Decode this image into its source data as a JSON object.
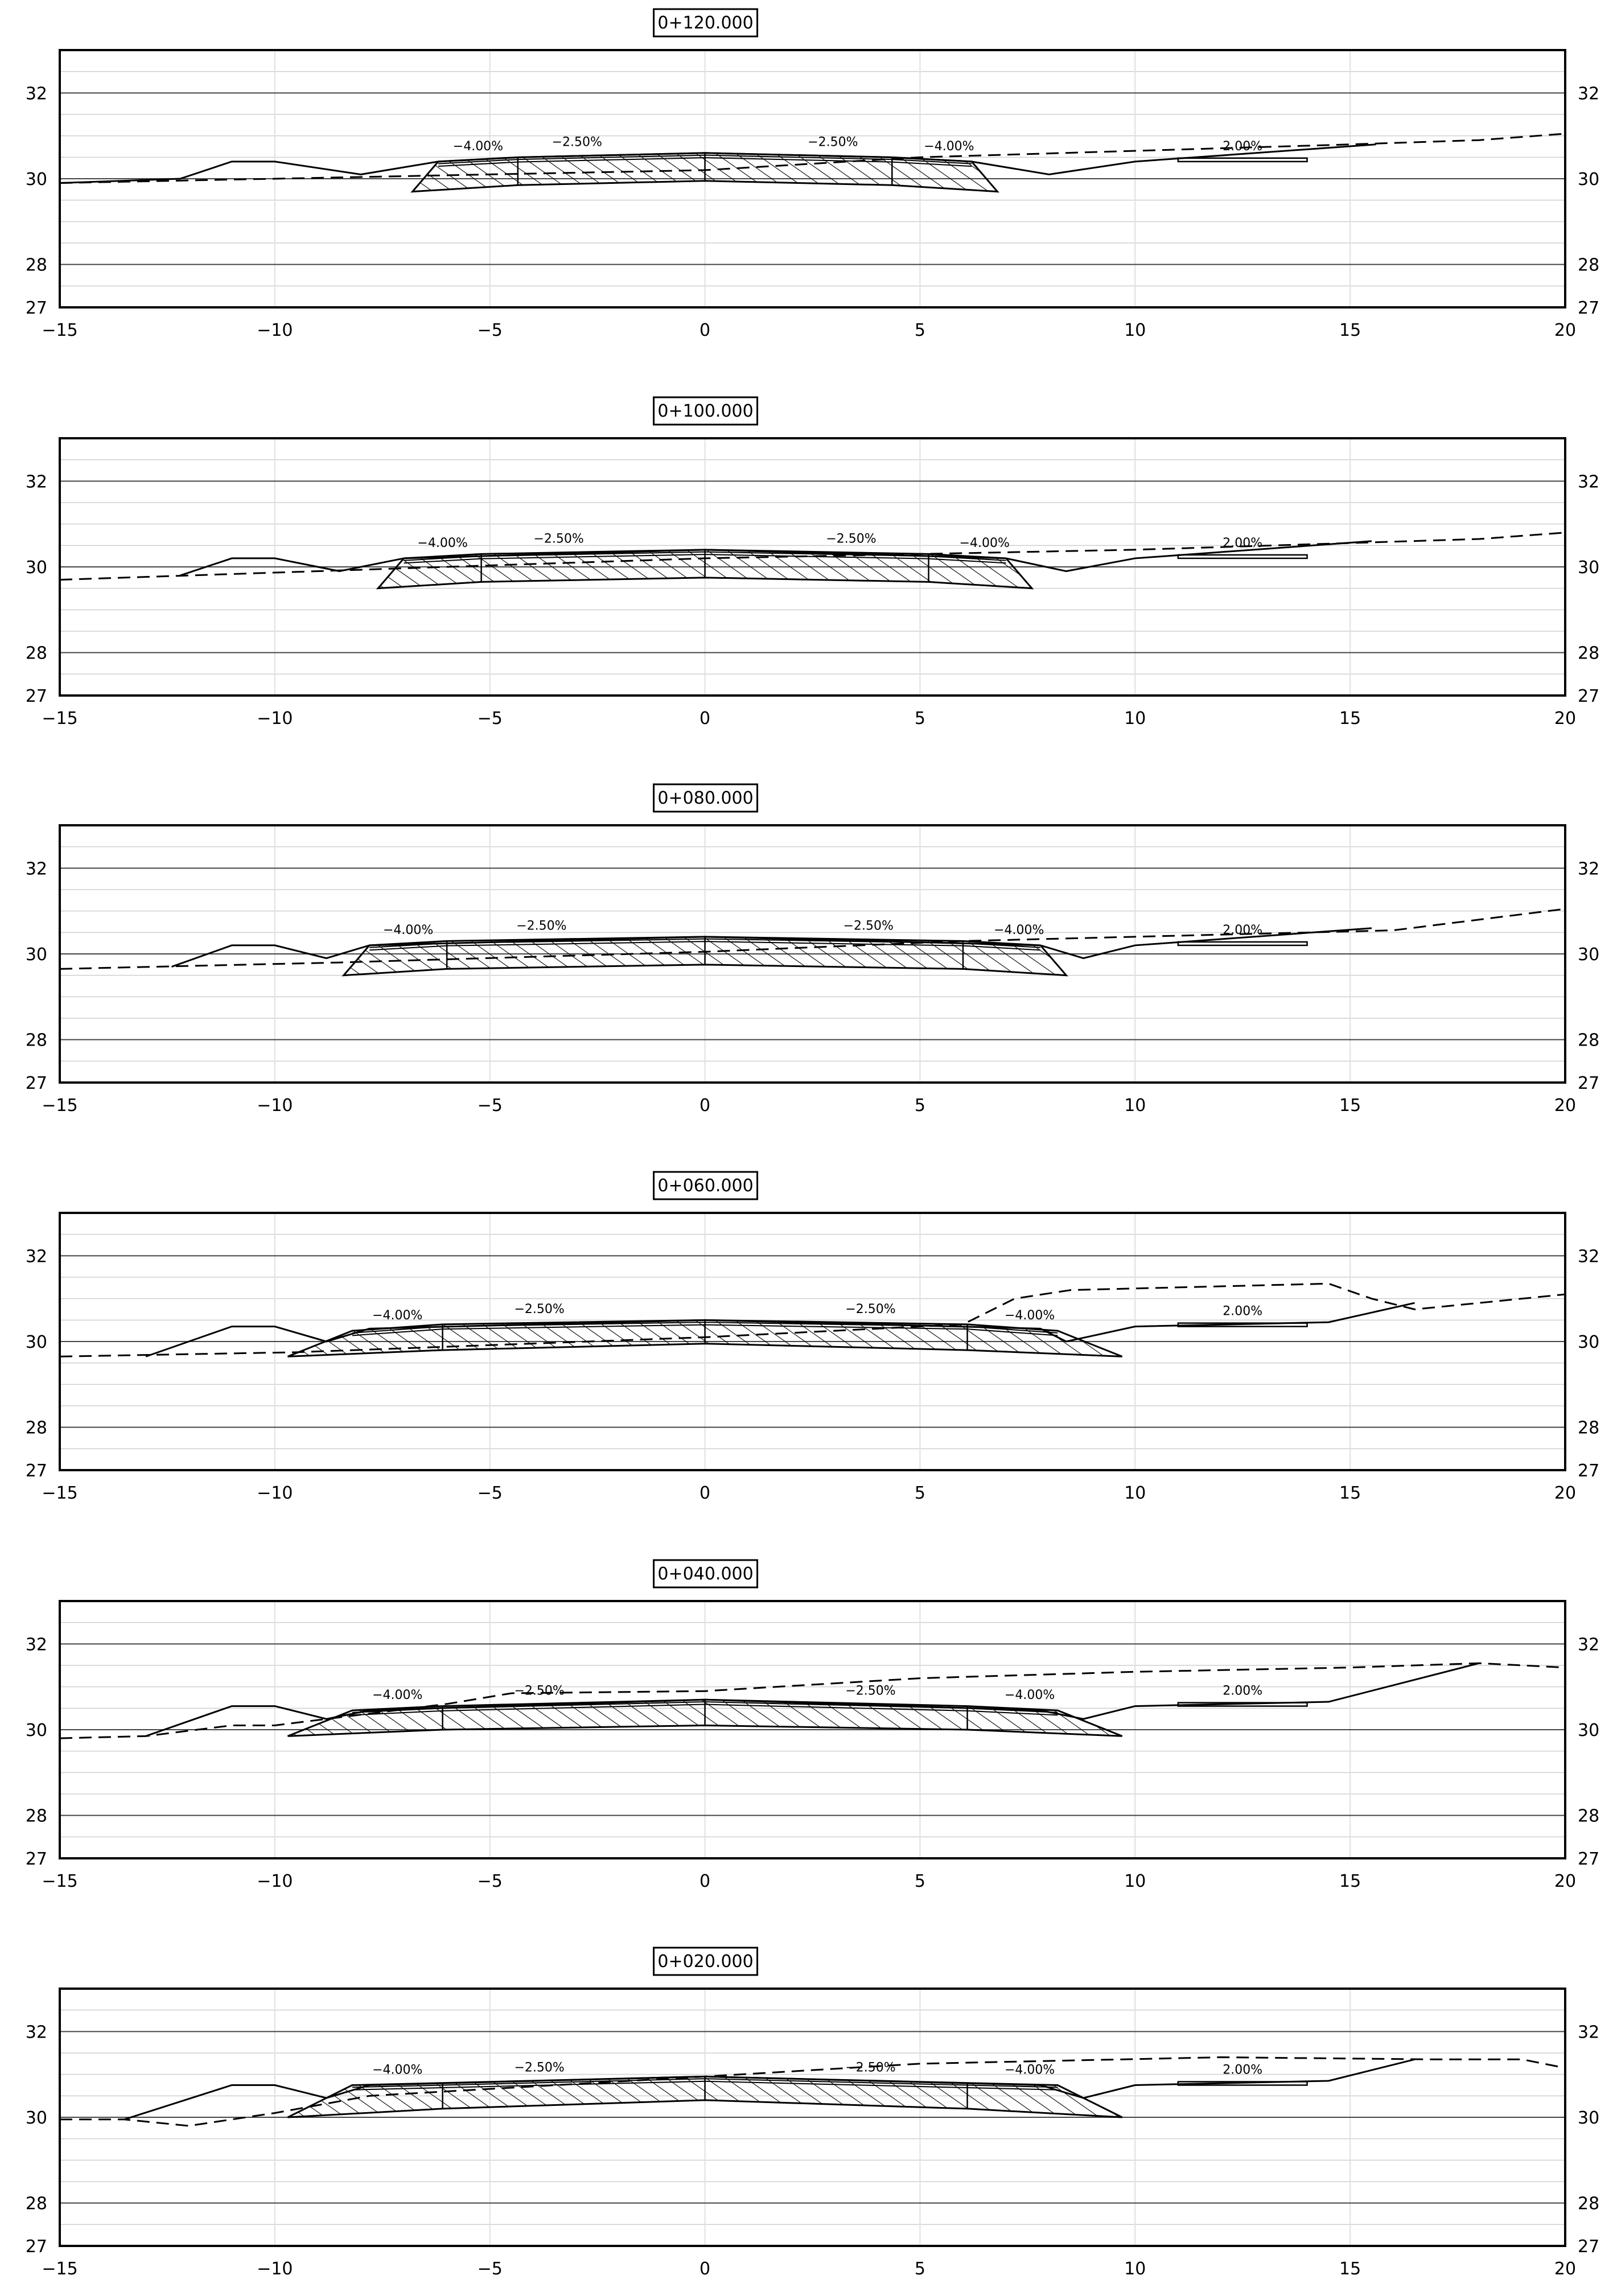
{
  "x_ticks": [
    "−15",
    "−10",
    "−5",
    "0",
    "5",
    "10",
    "15",
    "20"
  ],
  "y_ticks": [
    "32",
    "30",
    "28",
    "27"
  ],
  "grade_labels": {
    "outer": "−4.00%",
    "inner": "−2.50%",
    "right": "2.00%"
  },
  "chart_data": [
    {
      "type": "line",
      "title": "0+120.000",
      "xlim": [
        -15,
        20
      ],
      "ylim": [
        27,
        33
      ],
      "grid": true,
      "series": [
        {
          "style": "solid",
          "points": [
            [
              -15,
              29.9
            ],
            [
              -12.2,
              30.0
            ],
            [
              -11.0,
              30.4
            ],
            [
              -10.0,
              30.4
            ],
            [
              -8.0,
              30.1
            ],
            [
              -6.2,
              30.4
            ],
            [
              -4.3,
              30.5
            ],
            [
              0,
              30.6
            ],
            [
              4.3,
              30.5
            ],
            [
              6.2,
              30.4
            ],
            [
              8.0,
              30.1
            ],
            [
              10.0,
              30.4
            ],
            [
              15.6,
              30.8
            ]
          ]
        },
        {
          "style": "dashed",
          "points": [
            [
              -15,
              29.9
            ],
            [
              0,
              30.2
            ],
            [
              5.0,
              30.5
            ],
            [
              15.0,
              30.8
            ],
            [
              18.0,
              30.9
            ],
            [
              20.0,
              31.05
            ]
          ]
        }
      ],
      "section": {
        "top_center": 30.6,
        "top_inner": 30.5,
        "top_edge": 30.4,
        "bottom_center": 29.95,
        "bottom_inner": 29.85,
        "bottom_edge": 29.7,
        "inner_x": 4.35,
        "edge_x": 6.2,
        "bottom_x": 6.8
      },
      "curb": [
        11.0,
        14.0,
        30.4
      ]
    },
    {
      "type": "line",
      "title": "0+100.000",
      "xlim": [
        -15,
        20
      ],
      "ylim": [
        27,
        33
      ],
      "grid": true,
      "series": [
        {
          "style": "solid",
          "points": [
            [
              -12.2,
              29.8
            ],
            [
              -11.0,
              30.2
            ],
            [
              -10.0,
              30.2
            ],
            [
              -8.5,
              29.9
            ],
            [
              -7.0,
              30.2
            ],
            [
              0,
              30.4
            ],
            [
              7.0,
              30.2
            ],
            [
              8.4,
              29.9
            ],
            [
              10.0,
              30.2
            ],
            [
              15.5,
              30.6
            ]
          ]
        },
        {
          "style": "dashed",
          "points": [
            [
              -15,
              29.7
            ],
            [
              -7.5,
              29.95
            ],
            [
              0,
              30.2
            ],
            [
              10.0,
              30.4
            ],
            [
              18.0,
              30.65
            ],
            [
              20.0,
              30.8
            ]
          ]
        }
      ],
      "section": {
        "top_center": 30.4,
        "top_inner": 30.3,
        "top_edge": 30.2,
        "bottom_center": 29.75,
        "bottom_inner": 29.65,
        "bottom_edge": 29.5,
        "inner_x": 5.2,
        "edge_x": 7.0,
        "bottom_x": 7.6
      },
      "curb": [
        11.0,
        14.0,
        30.2
      ]
    },
    {
      "type": "line",
      "title": "0+080.000",
      "xlim": [
        -15,
        20
      ],
      "ylim": [
        27,
        33
      ],
      "grid": true,
      "series": [
        {
          "style": "solid",
          "points": [
            [
              -12.4,
              29.7
            ],
            [
              -11.0,
              30.2
            ],
            [
              -10.0,
              30.2
            ],
            [
              -8.8,
              29.9
            ],
            [
              -7.8,
              30.2
            ],
            [
              0,
              30.4
            ],
            [
              7.8,
              30.2
            ],
            [
              8.8,
              29.9
            ],
            [
              10.0,
              30.2
            ],
            [
              15.5,
              30.6
            ]
          ]
        },
        {
          "style": "dashed",
          "points": [
            [
              -15,
              29.65
            ],
            [
              -8.5,
              29.8
            ],
            [
              0,
              30.05
            ],
            [
              6.0,
              30.3
            ],
            [
              16.0,
              30.55
            ],
            [
              20.0,
              31.05
            ]
          ]
        }
      ],
      "section": {
        "top_center": 30.4,
        "top_inner": 30.3,
        "top_edge": 30.2,
        "bottom_center": 29.75,
        "bottom_inner": 29.65,
        "bottom_edge": 29.5,
        "inner_x": 6.0,
        "edge_x": 7.8,
        "bottom_x": 8.4
      },
      "curb": [
        11.0,
        14.0,
        30.2
      ]
    },
    {
      "type": "line",
      "title": "0+060.000",
      "xlim": [
        -15,
        20
      ],
      "ylim": [
        27,
        33
      ],
      "grid": true,
      "series": [
        {
          "style": "solid",
          "points": [
            [
              -13.0,
              29.65
            ],
            [
              -11.0,
              30.35
            ],
            [
              -10.0,
              30.35
            ],
            [
              -8.8,
              30.0
            ],
            [
              -7.8,
              30.3
            ],
            [
              0,
              30.5
            ],
            [
              7.8,
              30.3
            ],
            [
              8.4,
              30.0
            ],
            [
              10.0,
              30.35
            ],
            [
              14.5,
              30.45
            ],
            [
              16.5,
              30.9
            ]
          ]
        },
        {
          "style": "dashed",
          "points": [
            [
              -15,
              29.65
            ],
            [
              -9.5,
              29.75
            ],
            [
              0,
              30.1
            ],
            [
              6.0,
              30.4
            ],
            [
              7.2,
              31.0
            ],
            [
              8.5,
              31.2
            ],
            [
              14.5,
              31.35
            ],
            [
              15.5,
              31.0
            ],
            [
              16.5,
              30.75
            ],
            [
              20.0,
              31.1
            ]
          ]
        }
      ],
      "section": {
        "top_center": 30.5,
        "top_inner": 30.4,
        "top_edge": 30.25,
        "bottom_center": 29.95,
        "bottom_inner": 29.8,
        "bottom_edge": 29.65,
        "inner_x": 6.1,
        "edge_x": 8.2,
        "bottom_x": 9.7
      },
      "curb": [
        11.0,
        14.0,
        30.35
      ]
    },
    {
      "type": "line",
      "title": "0+040.000",
      "xlim": [
        -15,
        20
      ],
      "ylim": [
        27,
        33
      ],
      "grid": true,
      "series": [
        {
          "style": "solid",
          "points": [
            [
              -13.0,
              29.85
            ],
            [
              -11.0,
              30.55
            ],
            [
              -10.0,
              30.55
            ],
            [
              -8.8,
              30.25
            ],
            [
              -7.8,
              30.45
            ],
            [
              0,
              30.7
            ],
            [
              7.8,
              30.45
            ],
            [
              8.8,
              30.25
            ],
            [
              10.0,
              30.55
            ],
            [
              14.5,
              30.65
            ],
            [
              18.0,
              31.55
            ]
          ]
        },
        {
          "style": "dashed",
          "points": [
            [
              -15,
              29.8
            ],
            [
              -13.0,
              29.85
            ],
            [
              -11.0,
              30.1
            ],
            [
              -10.0,
              30.1
            ],
            [
              -6.0,
              30.6
            ],
            [
              -4.5,
              30.85
            ],
            [
              0,
              30.9
            ],
            [
              5.0,
              31.2
            ],
            [
              10.0,
              31.35
            ],
            [
              15.0,
              31.45
            ],
            [
              18.0,
              31.55
            ],
            [
              20.0,
              31.45
            ]
          ]
        }
      ],
      "section": {
        "top_center": 30.7,
        "top_inner": 30.55,
        "top_edge": 30.45,
        "bottom_center": 30.1,
        "bottom_inner": 30.0,
        "bottom_edge": 29.85,
        "inner_x": 6.1,
        "edge_x": 8.2,
        "bottom_x": 9.7
      },
      "curb": [
        11.0,
        14.0,
        30.55
      ]
    },
    {
      "type": "line",
      "title": "0+020.000",
      "xlim": [
        -15,
        20
      ],
      "ylim": [
        27,
        33
      ],
      "grid": true,
      "series": [
        {
          "style": "solid",
          "points": [
            [
              -13.5,
              29.95
            ],
            [
              -11.0,
              30.75
            ],
            [
              -10.0,
              30.75
            ],
            [
              -8.8,
              30.45
            ],
            [
              -7.8,
              30.75
            ],
            [
              0,
              30.95
            ],
            [
              7.8,
              30.75
            ],
            [
              8.8,
              30.45
            ],
            [
              10.0,
              30.75
            ],
            [
              14.5,
              30.85
            ],
            [
              16.5,
              31.35
            ]
          ]
        },
        {
          "style": "dashed",
          "points": [
            [
              -15,
              29.95
            ],
            [
              -13.5,
              29.95
            ],
            [
              -12.0,
              29.8
            ],
            [
              -10.0,
              30.1
            ],
            [
              -7.8,
              30.5
            ],
            [
              0,
              30.95
            ],
            [
              5.0,
              31.25
            ],
            [
              12.0,
              31.4
            ],
            [
              17.0,
              31.35
            ],
            [
              19.0,
              31.35
            ],
            [
              20.0,
              31.15
            ]
          ]
        }
      ],
      "section": {
        "top_center": 30.95,
        "top_inner": 30.8,
        "top_edge": 30.75,
        "bottom_center": 30.4,
        "bottom_inner": 30.2,
        "bottom_edge": 30.0,
        "inner_x": 6.1,
        "edge_x": 8.2,
        "bottom_x": 9.7
      },
      "curb": [
        11.0,
        14.0,
        30.75
      ]
    }
  ]
}
